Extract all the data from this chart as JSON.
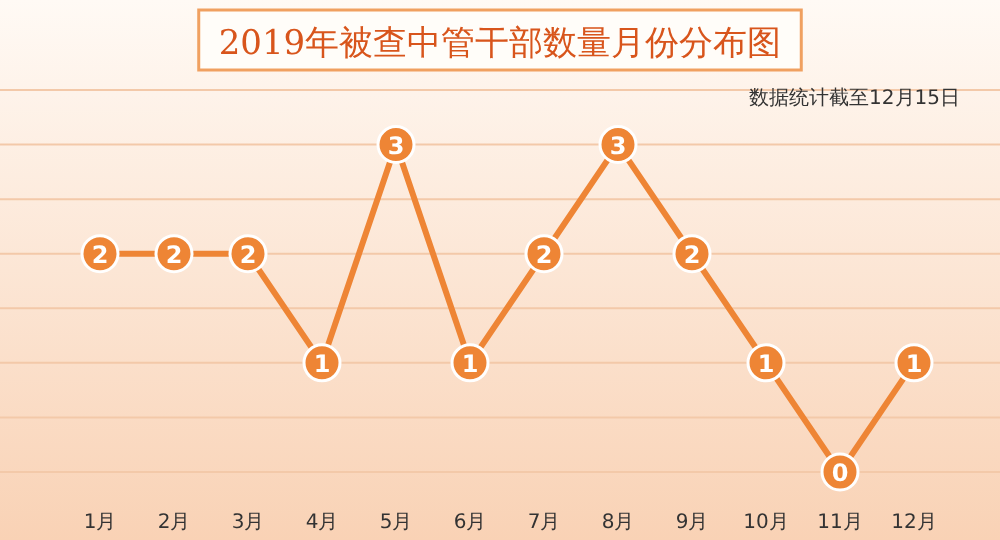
{
  "chart_data": {
    "type": "line",
    "title": "2019年被查中管干部数量月份分布图",
    "annotations": [
      "数据统计截至12月15日"
    ],
    "categories": [
      "1月",
      "2月",
      "3月",
      "4月",
      "5月",
      "6月",
      "7月",
      "8月",
      "9月",
      "10月",
      "11月",
      "12月"
    ],
    "series": [
      {
        "color": "#ee8535",
        "values": [
          2,
          2,
          2,
          1,
          3,
          1,
          2,
          3,
          2,
          1,
          0,
          1
        ]
      }
    ],
    "ylim": [
      0,
      3.5
    ],
    "yticks": [
      {
        "value": 0,
        "label": null
      },
      {
        "value": 0.5,
        "label": null
      },
      {
        "value": 1,
        "label": null
      },
      {
        "value": 1.5,
        "label": null
      },
      {
        "value": 2,
        "label": null
      },
      {
        "value": 2.5,
        "label": null
      },
      {
        "value": 3,
        "label": null
      },
      {
        "value": 3.5,
        "label": null
      }
    ],
    "grid": "y",
    "marker": "circle",
    "data_labels": true,
    "tick_labels": "x"
  }
}
